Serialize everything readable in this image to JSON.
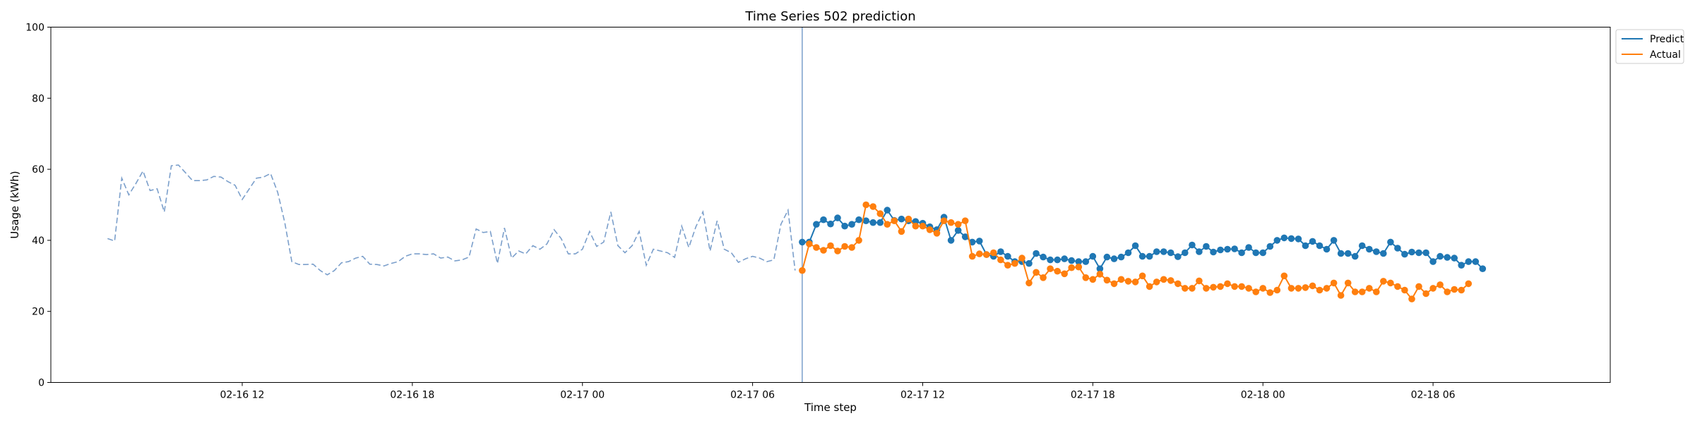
{
  "chart_data": {
    "type": "line",
    "title": "Time Series 502 prediction",
    "xlabel": "Time step",
    "ylabel": "Usage (kWh)",
    "ylim": [
      0,
      100
    ],
    "yticks": [
      0,
      20,
      40,
      60,
      80,
      100
    ],
    "xlim": [
      "2016-02-16 05:15",
      "2016-02-18 12:15"
    ],
    "xticks": [
      {
        "t": "2016-02-16 12:00",
        "label": "02-16 12"
      },
      {
        "t": "2016-02-16 18:00",
        "label": "02-16 18"
      },
      {
        "t": "2016-02-17 00:00",
        "label": "02-17 00"
      },
      {
        "t": "2016-02-17 06:00",
        "label": "02-17 06"
      },
      {
        "t": "2016-02-17 12:00",
        "label": "02-17 12"
      },
      {
        "t": "2016-02-17 18:00",
        "label": "02-17 18"
      },
      {
        "t": "2016-02-18 00:00",
        "label": "02-18 00"
      },
      {
        "t": "2016-02-18 06:00",
        "label": "02-18 06"
      }
    ],
    "interval_minutes": 15,
    "history": {
      "start": "2016-02-16 07:15",
      "values": [
        40.5,
        39.8,
        57.5,
        52.8,
        56,
        59.5,
        54,
        54.5,
        48,
        61,
        61.2,
        59,
        56.8,
        56.8,
        57,
        58,
        57.8,
        56.5,
        55.5,
        51.5,
        54.5,
        57.5,
        57.8,
        58.8,
        53.5,
        45,
        34,
        33.2,
        33.2,
        33.3,
        31.5,
        30.3,
        31.5,
        33.7,
        34,
        35,
        35.5,
        33.3,
        33.2,
        32.8,
        33.5,
        34,
        35.5,
        36.2,
        36.2,
        36,
        36.2,
        35,
        35.3,
        34.2,
        34.5,
        35.3,
        43.2,
        42.2,
        42.5,
        33.5,
        43.5,
        35,
        37,
        36.2,
        38.5,
        37.5,
        39,
        43,
        40.5,
        36.2,
        36.2,
        37.5,
        42.5,
        38.3,
        39.5,
        48,
        38.5,
        36.5,
        38.5,
        42.5,
        33,
        37.5,
        37,
        36.5,
        35.2,
        44,
        38,
        43.8,
        48,
        37,
        45.5,
        37.5,
        36.5,
        33.8,
        34.8,
        35.5,
        35,
        34,
        34.5,
        44.5,
        48.5,
        31.5
      ],
      "style": "dashed",
      "color": "#7b9fcb"
    },
    "forecast_start_line": "2016-02-17 07:45",
    "series": [
      {
        "name": "Predict",
        "color": "#1f77b4",
        "start": "2016-02-17 07:45",
        "values": [
          39.5,
          39.5,
          44.5,
          45.8,
          44.6,
          46.3,
          44,
          44.5,
          45.8,
          45.5,
          45,
          45,
          48.5,
          45.6,
          46,
          45.5,
          45.3,
          44.8,
          43.8,
          43,
          46.5,
          40,
          42.8,
          41,
          39.5,
          39.8,
          36,
          35.5,
          36.8,
          35.5,
          34,
          34,
          33.5,
          36.3,
          35.3,
          34.5,
          34.5,
          34.8,
          34.3,
          34,
          34,
          35.5,
          32,
          35.3,
          34.8,
          35.3,
          36.5,
          38.5,
          35.5,
          35.5,
          36.8,
          36.8,
          36.5,
          35.4,
          36.5,
          38.7,
          36.8,
          38.3,
          36.7,
          37.3,
          37.5,
          37.6,
          36.5,
          38,
          36.5,
          36.5,
          38.3,
          40,
          40.7,
          40.5,
          40.4,
          38.5,
          39.7,
          38.5,
          37.5,
          40,
          36.3,
          36.3,
          35.5,
          38.5,
          37.5,
          36.8,
          36.3,
          39.5,
          37.8,
          36.1,
          36.7,
          36.5,
          36.5,
          34,
          35.5,
          35.2,
          35,
          33,
          34,
          34,
          32
        ]
      },
      {
        "name": "Actual",
        "color": "#ff7f0e",
        "start": "2016-02-17 07:45",
        "values": [
          31.5,
          39,
          38,
          37.2,
          38.5,
          37,
          38.3,
          38,
          40,
          50,
          49.5,
          47.5,
          44.5,
          45.5,
          42.5,
          46,
          44,
          44,
          43,
          42,
          45.5,
          45,
          44.5,
          45.5,
          35.5,
          36.2,
          36,
          36.5,
          34.5,
          33,
          33.5,
          35,
          28,
          31,
          29.5,
          32,
          31.3,
          30.6,
          32.3,
          32.5,
          29.5,
          29,
          30.5,
          28.8,
          27.8,
          29,
          28.5,
          28.3,
          30,
          27,
          28.3,
          29,
          28.7,
          27.8,
          26.5,
          26.5,
          28.6,
          26.5,
          26.8,
          27,
          27.8,
          27,
          27,
          26.5,
          25.5,
          26.5,
          25.3,
          26,
          30,
          26.5,
          26.5,
          26.7,
          27.2,
          26,
          26.5,
          28,
          24.5,
          28,
          25.5,
          25.5,
          26.5,
          25.5,
          28.5,
          28,
          27,
          26,
          23.5,
          27,
          25,
          26.5,
          27.5,
          25.5,
          26.2,
          26,
          27.8
        ]
      }
    ],
    "legend_position": "upper-right-outside",
    "grid": false
  }
}
